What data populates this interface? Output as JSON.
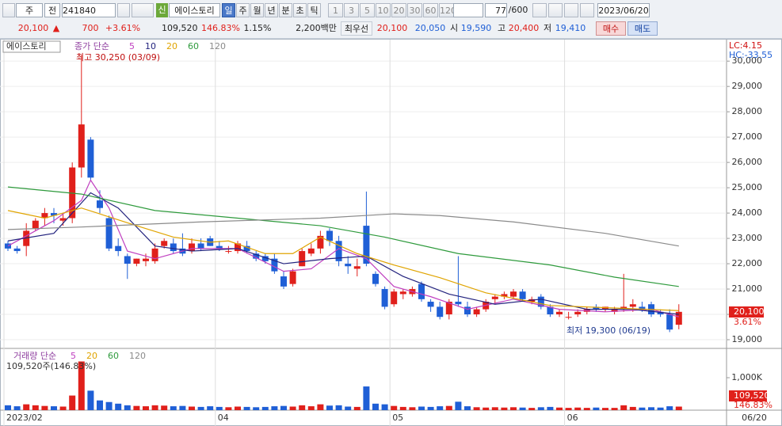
{
  "toolbar": {
    "period": "주",
    "type": "전",
    "code": "241840",
    "new_badge": "신",
    "name": "에이스토리",
    "intervals": [
      "일",
      "주",
      "월",
      "년",
      "분",
      "초",
      "틱"
    ],
    "minutes": [
      "1",
      "3",
      "5",
      "10",
      "20",
      "30",
      "60",
      "120"
    ],
    "count": "77",
    "count_max": "/600",
    "date": "2023/06/20"
  },
  "quote": {
    "price": "20,100",
    "arrow": "▲",
    "change": "700",
    "change_pct": "+3.61%",
    "volume": "109,520",
    "volume_ratio": "146.83%",
    "turnover": "1.15%",
    "amount": "2,200백만",
    "best_label": "최우선",
    "best_ask": "20,100",
    "best_bid": "20,050",
    "open_label": "시",
    "open": "19,590",
    "high_label": "고",
    "high": "20,400",
    "low_label": "저",
    "low": "19,410",
    "buy": "매수",
    "sell": "매도"
  },
  "chart_data": {
    "type": "candlestick",
    "name": "에이스토리",
    "ma_label": "종가 단순",
    "high_note": "최고 30,250 (03/09)",
    "low_note": "최저 19,300 (06/19)",
    "lc": "LC:4.15",
    "hc": "HC:-33.55",
    "last_price": "20,100",
    "last_pct": "3.61%",
    "up_color": "#e0201b",
    "down_color": "#1f5fd6",
    "ylim": [
      18750,
      30850
    ],
    "yticks": [
      {
        "value": 19000,
        "label": "19,000"
      },
      {
        "value": 20000,
        "label": "20,000"
      },
      {
        "value": 21000,
        "label": "21,000"
      },
      {
        "value": 22000,
        "label": "22,000"
      },
      {
        "value": 23000,
        "label": "23,000"
      },
      {
        "value": 24000,
        "label": "24,000"
      },
      {
        "value": 25000,
        "label": "25,000"
      },
      {
        "value": 26000,
        "label": "26,000"
      },
      {
        "value": 27000,
        "label": "27,000"
      },
      {
        "value": 28000,
        "label": "28,000"
      },
      {
        "value": 29000,
        "label": "29,000"
      },
      {
        "value": 30000,
        "label": "30,000"
      }
    ],
    "xtick_index": [
      0,
      23,
      42,
      61
    ],
    "xtick_labels": [
      "2023/02",
      "04",
      "05",
      "06"
    ],
    "last_date": "06/20",
    "candles": [
      [
        22800,
        22900,
        22500,
        22600
      ],
      [
        22600,
        22700,
        22400,
        22500
      ],
      [
        22700,
        23600,
        22300,
        23300
      ],
      [
        23400,
        23800,
        23300,
        23700
      ],
      [
        23800,
        24200,
        23500,
        24000
      ],
      [
        24000,
        24200,
        23600,
        23900
      ],
      [
        23700,
        24000,
        23500,
        23800
      ],
      [
        23800,
        26000,
        23600,
        25800
      ],
      [
        25800,
        30250,
        25400,
        27500
      ],
      [
        26900,
        27000,
        25300,
        25400
      ],
      [
        24500,
        24900,
        24000,
        24200
      ],
      [
        23800,
        23900,
        22500,
        22600
      ],
      [
        22700,
        23000,
        22300,
        22500
      ],
      [
        22300,
        22400,
        21400,
        22000
      ],
      [
        22000,
        22200,
        21900,
        22200
      ],
      [
        22100,
        22400,
        21900,
        22200
      ],
      [
        22100,
        22800,
        22000,
        22600
      ],
      [
        22700,
        23000,
        22600,
        22900
      ],
      [
        22800,
        23000,
        22400,
        22500
      ],
      [
        22600,
        23200,
        22300,
        22400
      ],
      [
        22500,
        23000,
        22400,
        22800
      ],
      [
        22800,
        23000,
        22500,
        22600
      ],
      [
        23000,
        23100,
        22700,
        22700
      ],
      [
        22700,
        22900,
        22500,
        22600
      ],
      [
        22500,
        22700,
        22400,
        22500
      ],
      [
        22500,
        22900,
        22400,
        22800
      ],
      [
        22700,
        22900,
        22400,
        22500
      ],
      [
        22400,
        22500,
        22100,
        22200
      ],
      [
        22300,
        22400,
        22000,
        22100
      ],
      [
        22200,
        22400,
        21600,
        21700
      ],
      [
        21500,
        21700,
        21000,
        21100
      ],
      [
        21200,
        21800,
        21100,
        21700
      ],
      [
        21900,
        22600,
        21900,
        22500
      ],
      [
        22400,
        22800,
        22300,
        22600
      ],
      [
        22600,
        23300,
        22400,
        23100
      ],
      [
        23300,
        23400,
        22700,
        22900
      ],
      [
        22900,
        23100,
        21900,
        22100
      ],
      [
        22000,
        22300,
        21600,
        21900
      ],
      [
        21800,
        22200,
        21500,
        21900
      ],
      [
        23500,
        24850,
        21900,
        22000
      ],
      [
        21600,
        21700,
        21100,
        21200
      ],
      [
        21000,
        21100,
        20200,
        20300
      ],
      [
        20400,
        21000,
        20300,
        20900
      ],
      [
        20800,
        21000,
        20600,
        20900
      ],
      [
        20800,
        21100,
        20700,
        21000
      ],
      [
        21200,
        21300,
        20500,
        20600
      ],
      [
        20500,
        20600,
        20100,
        20300
      ],
      [
        20300,
        20500,
        19800,
        19900
      ],
      [
        20000,
        20600,
        19800,
        20500
      ],
      [
        20500,
        22300,
        20300,
        20400
      ],
      [
        20300,
        20500,
        19900,
        20000
      ],
      [
        20000,
        20300,
        19900,
        20200
      ],
      [
        20200,
        20600,
        20100,
        20500
      ],
      [
        20600,
        20800,
        20400,
        20700
      ],
      [
        20700,
        20900,
        20600,
        20800
      ],
      [
        20700,
        21000,
        20600,
        20900
      ],
      [
        20900,
        21000,
        20500,
        20600
      ],
      [
        20500,
        20700,
        20400,
        20600
      ],
      [
        20700,
        20800,
        20200,
        20300
      ],
      [
        20300,
        20400,
        19900,
        20000
      ],
      [
        20000,
        20200,
        19900,
        20100
      ],
      [
        19900,
        20100,
        19800,
        19900
      ],
      [
        20000,
        20200,
        19900,
        20100
      ],
      [
        20100,
        20300,
        20000,
        20200
      ],
      [
        20300,
        20400,
        20100,
        20200
      ],
      [
        20200,
        20300,
        20100,
        20300
      ],
      [
        20100,
        20300,
        20000,
        20200
      ],
      [
        20200,
        21600,
        20100,
        20300
      ],
      [
        20300,
        20600,
        20100,
        20400
      ],
      [
        20300,
        20500,
        20100,
        20200
      ],
      [
        20400,
        20500,
        19900,
        20000
      ],
      [
        20100,
        20200,
        19900,
        20000
      ],
      [
        20000,
        20200,
        19300,
        19400
      ],
      [
        19590,
        20400,
        19410,
        20100
      ]
    ],
    "ma": [
      {
        "name": "5",
        "color": "#c040c0",
        "x": [
          0,
          5,
          8,
          9,
          11,
          13,
          16,
          20,
          25,
          30,
          33,
          36,
          39,
          42,
          46,
          50,
          55,
          60,
          65,
          70,
          73
        ],
        "values": [
          22700,
          23700,
          24500,
          25300,
          24200,
          22500,
          22200,
          22600,
          22600,
          21700,
          21800,
          22600,
          22200,
          21100,
          20700,
          20200,
          20600,
          20200,
          20100,
          20200,
          19900
        ]
      },
      {
        "name": "10",
        "color": "#23237e",
        "x": [
          0,
          5,
          9,
          12,
          16,
          20,
          25,
          30,
          35,
          39,
          43,
          48,
          53,
          58,
          63,
          68,
          73
        ],
        "values": [
          22900,
          23200,
          24800,
          24200,
          22700,
          22500,
          22600,
          22000,
          22200,
          22300,
          21500,
          20800,
          20400,
          20600,
          20200,
          20200,
          20000
        ]
      },
      {
        "name": "20",
        "color": "#e0a400",
        "x": [
          0,
          4,
          8,
          14,
          18,
          22,
          24,
          28,
          31,
          34,
          38,
          42,
          47,
          52,
          59,
          66,
          73
        ],
        "values": [
          24100,
          23800,
          24200,
          23500,
          23050,
          22850,
          22900,
          22400,
          22400,
          23050,
          22400,
          21950,
          21450,
          20850,
          20350,
          20250,
          20150
        ]
      },
      {
        "name": "60",
        "color": "#2e9a3c",
        "x": [
          0,
          8,
          16,
          25,
          34,
          41,
          49,
          59,
          66,
          73
        ],
        "values": [
          25030,
          24750,
          24100,
          23800,
          23500,
          23050,
          22400,
          21950,
          21470,
          21100
        ]
      },
      {
        "name": "120",
        "color": "#8a8a8a",
        "x": [
          0,
          8,
          21,
          34,
          42,
          47,
          55,
          65,
          73
        ],
        "values": [
          23350,
          23450,
          23650,
          23800,
          23970,
          23900,
          23650,
          23200,
          22700
        ]
      }
    ],
    "volume": {
      "label": "거래량 단순",
      "note": "109,520주(146.83%)",
      "last": "109,520",
      "last_pct": "146.83%",
      "ylim": [
        0,
        1780000
      ],
      "yticks": [
        {
          "value": 1000000,
          "label": "1,000K"
        }
      ],
      "ma": [
        {
          "name": "5",
          "color": "#c040c0"
        },
        {
          "name": "20",
          "color": "#e0a400"
        },
        {
          "name": "60",
          "color": "#2e9a3c"
        },
        {
          "name": "120",
          "color": "#8a8a8a"
        }
      ],
      "values": [
        150000,
        120000,
        180000,
        150000,
        130000,
        120000,
        110000,
        450000,
        1500000,
        600000,
        300000,
        250000,
        200000,
        150000,
        130000,
        120000,
        150000,
        140000,
        120000,
        130000,
        110000,
        100000,
        120000,
        100000,
        90000,
        110000,
        100000,
        90000,
        100000,
        120000,
        130000,
        110000,
        150000,
        120000,
        180000,
        140000,
        150000,
        110000,
        100000,
        730000,
        200000,
        180000,
        130000,
        100000,
        90000,
        110000,
        100000,
        120000,
        130000,
        260000,
        120000,
        90000,
        80000,
        90000,
        80000,
        90000,
        80000,
        70000,
        90000,
        100000,
        80000,
        70000,
        80000,
        70000,
        80000,
        70000,
        70000,
        150000,
        100000,
        80000,
        90000,
        80000,
        120000,
        109520
      ]
    }
  }
}
